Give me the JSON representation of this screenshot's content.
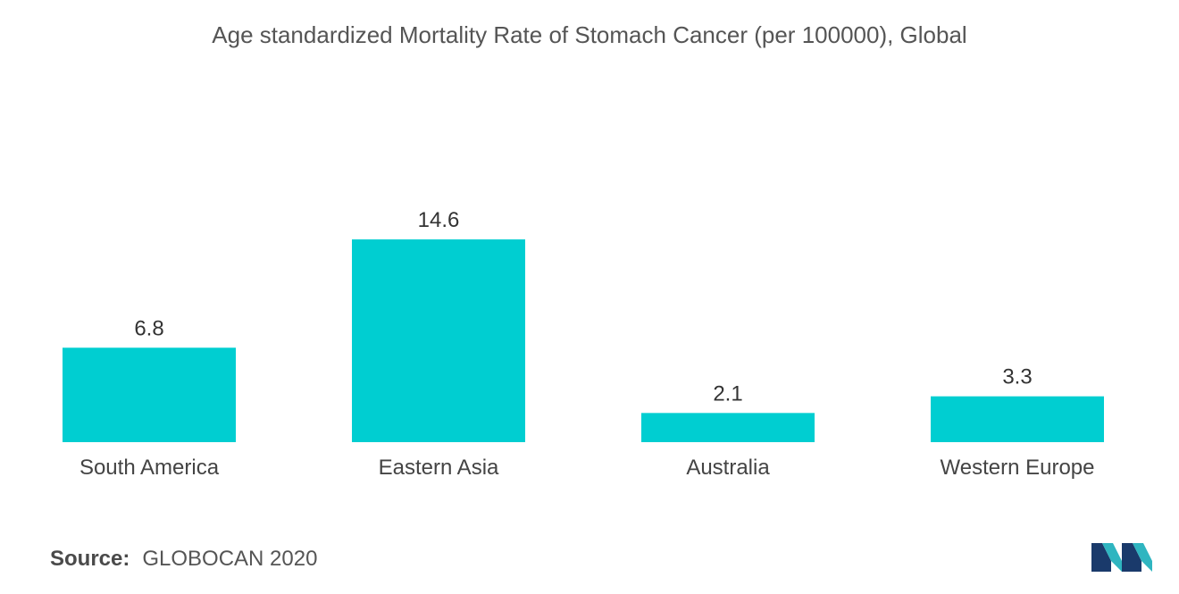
{
  "chart_data": {
    "type": "bar",
    "title": "Age standardized Mortality Rate of Stomach Cancer (per 100000), Global",
    "categories": [
      "South America",
      "Eastern Asia",
      "Australia",
      "Western Europe"
    ],
    "values": [
      6.8,
      14.6,
      2.1,
      3.3
    ],
    "data_labels": [
      "6.8",
      "14.6",
      "2.1",
      "3.3"
    ],
    "xlabel": "",
    "ylabel": "",
    "ylim": [
      0,
      14.6
    ],
    "grid": false,
    "legend": "none",
    "colors": {
      "bar": "#00CED1"
    }
  },
  "source": {
    "label": "Source:",
    "text": "GLOBOCAN 2020"
  },
  "logo": {
    "icon": "mordor-intelligence-logo-icon",
    "colors": [
      "#1a3a6b",
      "#2fb5c0"
    ]
  }
}
